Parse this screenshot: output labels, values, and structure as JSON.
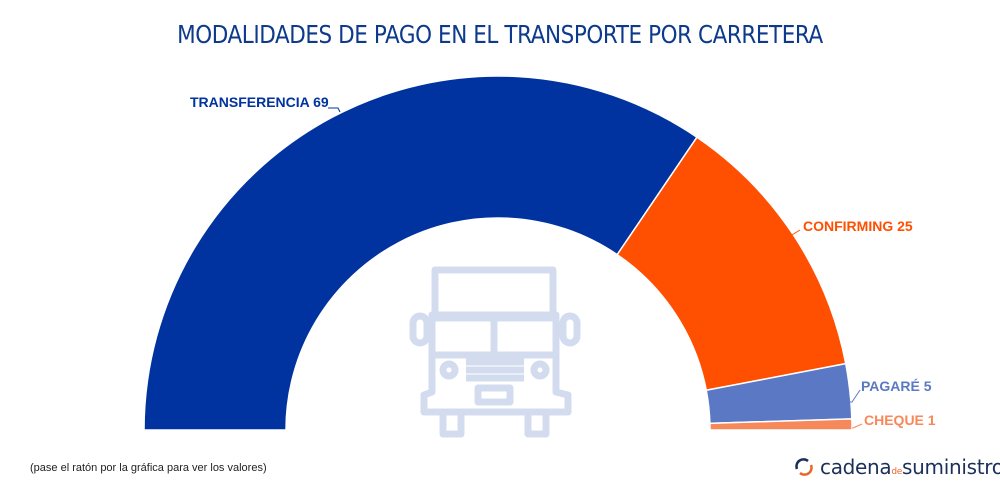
{
  "chart_data": {
    "type": "pie",
    "variant": "semi-donut",
    "title": "MODALIDADES DE PAGO EN EL TRANSPORTE POR CARRETERA",
    "slices": [
      {
        "label": "TRANSFERENCIA",
        "value": 69,
        "color": "#0033a0"
      },
      {
        "label": "CONFIRMING",
        "value": 25,
        "color": "#ff4f00"
      },
      {
        "label": "PAGARÉ",
        "value": 5,
        "color": "#5a78c4"
      },
      {
        "label": "CHEQUE",
        "value": 1,
        "color": "#f6885a"
      }
    ]
  },
  "footer": {
    "hint": "(pase el ratón por la gráfica para ver los valores)",
    "logo_main": "cadena",
    "logo_de": "de",
    "logo_end": "suministro"
  },
  "colors": {
    "title": "#0d3a8c",
    "truck": "#d3dcef"
  }
}
